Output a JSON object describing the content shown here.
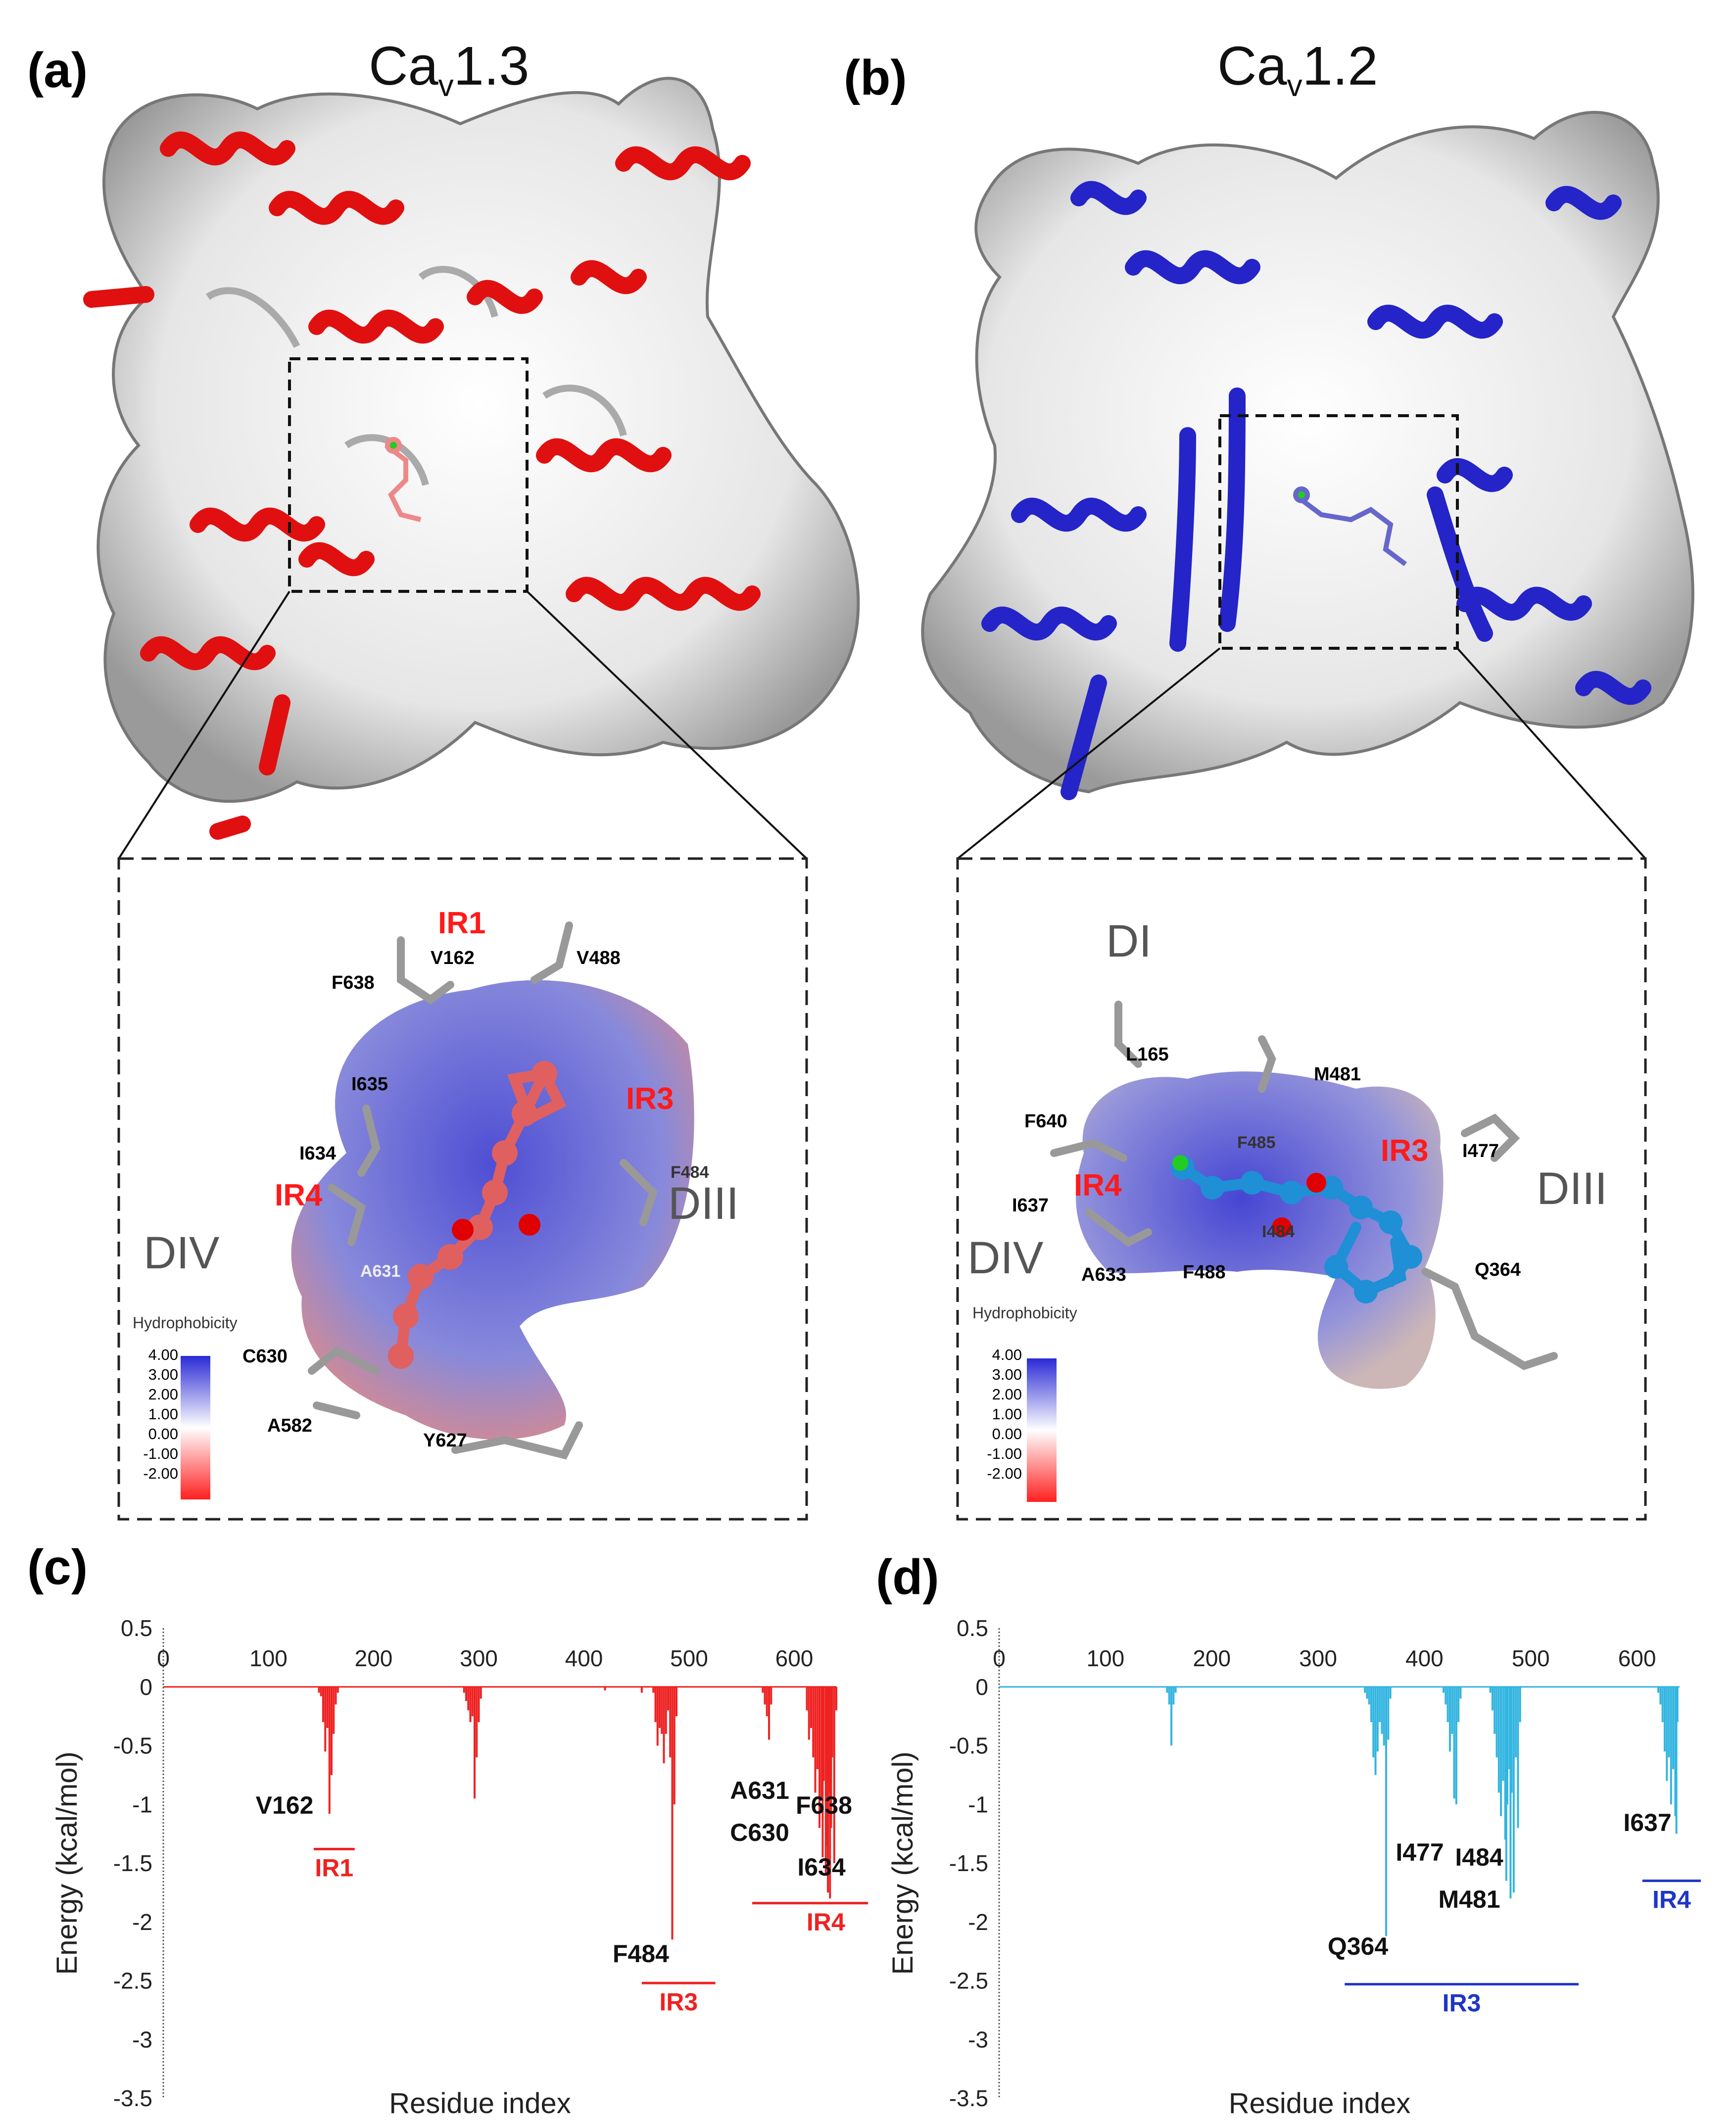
{
  "panels": {
    "a": {
      "letter": "(a)",
      "title_main": "Ca",
      "title_sub": "v",
      "title_tail": "1.3",
      "zoom": {
        "labels": {
          "IR1": "IR1",
          "IR3": "IR3",
          "IR4": "IR4",
          "DIII": "DIII",
          "DIV": "DIV",
          "V162": "V162",
          "V488": "V488",
          "F638": "F638",
          "I635": "I635",
          "I634": "I634",
          "F484": "F484",
          "A631": "A631",
          "C630": "C630",
          "A582": "A582",
          "Y627": "Y627"
        },
        "legend": {
          "title": "Hydrophobicity",
          "ticks": [
            "4.00",
            "3.00",
            "2.00",
            "1.00",
            "0.00",
            "-1.00",
            "-2.00"
          ]
        }
      }
    },
    "b": {
      "letter": "(b)",
      "title_main": "Ca",
      "title_sub": "v",
      "title_tail": "1.2",
      "zoom": {
        "labels": {
          "DI": "DI",
          "DIII": "DIII",
          "DIV": "DIV",
          "IR3": "IR3",
          "IR4": "IR4",
          "L165": "L165",
          "M481": "M481",
          "F640": "F640",
          "F485": "F485",
          "I477": "I477",
          "I637": "I637",
          "I484": "I484",
          "A633": "A633",
          "F488": "F488",
          "Q364": "Q364"
        },
        "legend": {
          "title": "Hydrophobicity",
          "ticks": [
            "4.00",
            "3.00",
            "2.00",
            "1.00",
            "0.00",
            "-1.00",
            "-2.00"
          ]
        }
      }
    }
  },
  "chart_data": [
    {
      "panel": "(c)",
      "type": "bar",
      "color": "#ee2222",
      "xlabel": "Residue index",
      "ylabel": "Energy (kcal/mol)",
      "xlim": [
        0,
        640
      ],
      "ylim": [
        -3.5,
        0.5
      ],
      "xticks": [
        "0",
        "100",
        "200",
        "300",
        "400",
        "500",
        "600"
      ],
      "yticks": [
        "0.5",
        "0",
        "-0.5",
        "-1",
        "-1.5",
        "-2",
        "-2.5",
        "-3",
        "-3.5"
      ],
      "x": [
        148,
        150,
        152,
        154,
        156,
        158,
        160,
        162,
        164,
        166,
        286,
        288,
        290,
        292,
        294,
        296,
        298,
        300,
        302,
        420,
        455,
        466,
        468,
        470,
        472,
        474,
        476,
        478,
        480,
        482,
        484,
        486,
        488,
        570,
        572,
        574,
        576,
        578,
        612,
        614,
        616,
        618,
        620,
        622,
        624,
        626,
        627,
        628,
        630,
        631,
        632,
        633,
        634,
        635,
        636,
        638,
        640
      ],
      "values": [
        -0.05,
        -0.08,
        -0.3,
        -0.55,
        -0.35,
        -1.08,
        -0.75,
        -0.4,
        -0.15,
        -0.05,
        -0.05,
        -0.12,
        -0.2,
        -0.3,
        -0.25,
        -0.95,
        -0.6,
        -0.3,
        -0.1,
        -0.03,
        -0.05,
        -0.05,
        -0.3,
        -0.5,
        -0.35,
        -0.4,
        -0.65,
        -0.4,
        -0.2,
        -0.6,
        -2.15,
        -1.0,
        -0.25,
        -0.05,
        -0.15,
        -0.25,
        -0.45,
        -0.15,
        -0.2,
        -0.45,
        -0.35,
        -0.6,
        -0.9,
        -0.7,
        -1.2,
        -0.95,
        -1.45,
        -0.8,
        -1.6,
        -1.35,
        -1.75,
        -0.9,
        -1.8,
        -1.2,
        -0.6,
        -1.5,
        -0.2
      ],
      "annotations": [
        {
          "label": "V162",
          "group": "IR1"
        },
        {
          "label": "F484",
          "group": "IR3"
        },
        {
          "label": "A631",
          "group": "IR4"
        },
        {
          "label": "F638",
          "group": "IR4"
        },
        {
          "label": "C630",
          "group": "IR4"
        },
        {
          "label": "I634",
          "group": "IR4"
        }
      ],
      "groups": [
        {
          "name": "IR1",
          "x_range": [
            143,
            182
          ],
          "y": -1.38
        },
        {
          "name": "IR3",
          "x_range": [
            455,
            525
          ],
          "y": -2.52
        },
        {
          "name": "IR4",
          "x_range": [
            560,
            700
          ],
          "y": -1.84
        }
      ]
    },
    {
      "panel": "(d)",
      "type": "bar",
      "color": "#33b5e0",
      "xlabel": "Residue index",
      "ylabel": "Energy (kcal/mol)",
      "xlim": [
        0,
        640
      ],
      "ylim": [
        -3.5,
        0.5
      ],
      "xticks": [
        "0",
        "100",
        "200",
        "300",
        "400",
        "500",
        "600"
      ],
      "yticks": [
        "0.5",
        "0",
        "-0.5",
        "-1",
        "-1.5",
        "-2",
        "-2.5",
        "-3",
        "-3.5"
      ],
      "x": [
        158,
        160,
        162,
        164,
        166,
        344,
        346,
        348,
        350,
        352,
        354,
        356,
        358,
        360,
        362,
        364,
        366,
        368,
        418,
        420,
        422,
        424,
        426,
        428,
        430,
        432,
        434,
        462,
        464,
        466,
        468,
        470,
        472,
        474,
        476,
        477,
        478,
        480,
        481,
        482,
        484,
        486,
        488,
        490,
        620,
        622,
        624,
        626,
        628,
        630,
        632,
        634,
        636,
        637,
        638
      ],
      "values": [
        -0.05,
        -0.15,
        -0.5,
        -0.15,
        -0.05,
        -0.05,
        -0.1,
        -0.15,
        -0.3,
        -0.6,
        -0.75,
        -0.55,
        -0.3,
        -0.4,
        -0.5,
        -2.12,
        -0.45,
        -0.1,
        -0.05,
        -0.15,
        -0.3,
        -0.55,
        -0.4,
        -0.95,
        -1.0,
        -0.3,
        -0.1,
        -0.05,
        -0.2,
        -0.4,
        -0.6,
        -0.9,
        -1.1,
        -0.8,
        -1.3,
        -1.65,
        -1.0,
        -0.7,
        -1.8,
        -0.9,
        -1.75,
        -0.6,
        -1.2,
        -0.3,
        -0.05,
        -0.15,
        -0.3,
        -0.55,
        -0.8,
        -0.6,
        -1.0,
        -0.7,
        -1.1,
        -1.25,
        -0.3
      ],
      "annotations": [
        {
          "label": "Q364",
          "group": "IR3"
        },
        {
          "label": "I477",
          "group": "IR3"
        },
        {
          "label": "I484",
          "group": "IR3"
        },
        {
          "label": "M481",
          "group": "IR3"
        },
        {
          "label": "I637",
          "group": "IR4"
        }
      ],
      "groups": [
        {
          "name": "IR3",
          "x_range": [
            325,
            545
          ],
          "y": -2.53
        },
        {
          "name": "IR4",
          "x_range": [
            605,
            660
          ],
          "y": -1.65
        }
      ]
    }
  ]
}
